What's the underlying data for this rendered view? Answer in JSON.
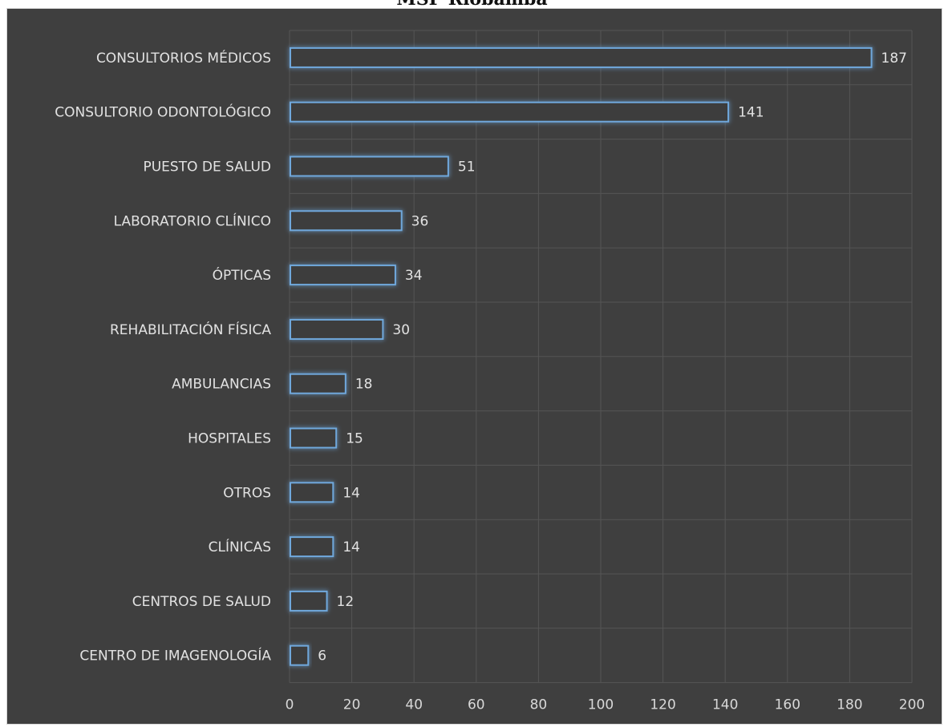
{
  "chart_data": {
    "type": "bar",
    "orientation": "horizontal",
    "title": "MSP Riobamba",
    "categories": [
      "CONSULTORIOS MÉDICOS",
      "CONSULTORIO ODONTOLÓGICO",
      "PUESTO DE SALUD",
      "LABORATORIO CLÍNICO",
      "ÓPTICAS",
      "REHABILITACIÓN FÍSICA",
      "AMBULANCIAS",
      "HOSPITALES",
      "OTROS",
      "CLÍNICAS",
      "CENTROS DE SALUD",
      "CENTRO DE IMAGENOLOGÍA"
    ],
    "values": [
      187,
      141,
      51,
      36,
      34,
      30,
      18,
      15,
      14,
      14,
      12,
      6
    ],
    "xlim": [
      0,
      200
    ],
    "xticks": [
      "0",
      "20",
      "40",
      "60",
      "80",
      "100",
      "120",
      "140",
      "160",
      "180",
      "200"
    ],
    "xlabel": "",
    "ylabel": "",
    "grid": "vertical",
    "legend": "none",
    "colors": {
      "background": "#3f3f3f",
      "bar_fill": "#3c3c3c",
      "bar_edge": "#6fa8dc",
      "bar_glow": "#2f74b5",
      "grid": "#555555",
      "text": "#e2e2e2"
    }
  }
}
